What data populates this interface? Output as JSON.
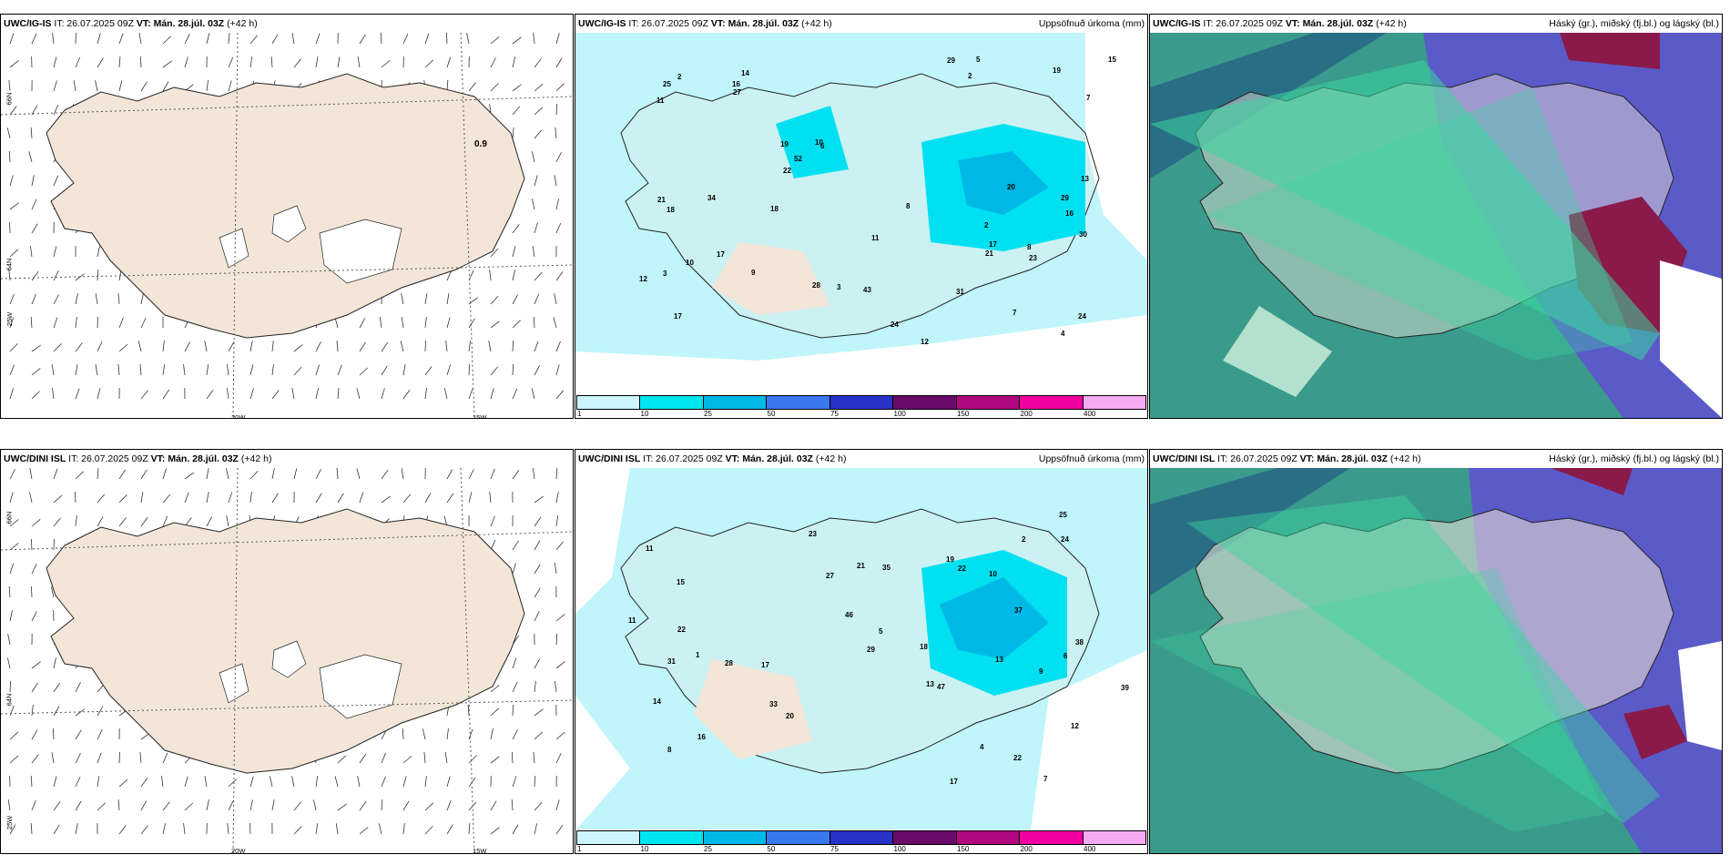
{
  "panels": [
    {
      "model": "UWC/IG-IS",
      "it": "IT: 26.07.2025 09Z",
      "vt": "VT: Mán. 28.júl. 03Z",
      "lead": "(+42 h)",
      "title": ""
    },
    {
      "model": "UWC/IG-IS",
      "it": "IT: 26.07.2025 09Z",
      "vt": "VT: Mán. 28.júl. 03Z",
      "lead": "(+42 h)",
      "title": "Uppsöfnuð úrkoma (mm)"
    },
    {
      "model": "UWC/IG-IS",
      "it": "IT: 26.07.2025 09Z",
      "vt": "VT: Mán. 28.júl. 03Z",
      "lead": "(+42 h)",
      "title": "Háský (gr.), miðský (fj.bl.) og lágský (bl.)"
    },
    {
      "model": "UWC/DINI ISL",
      "it": "IT: 26.07.2025 09Z",
      "vt": "VT: Mán. 28.júl. 03Z",
      "lead": "(+42 h)",
      "title": ""
    },
    {
      "model": "UWC/DINI ISL",
      "it": "IT: 26.07.2025 09Z",
      "vt": "VT: Mán. 28.júl. 03Z",
      "lead": "(+42 h)",
      "title": "Uppsöfnuð úrkoma (mm)"
    },
    {
      "model": "UWC/DINI ISL",
      "it": "IT: 26.07.2025 09Z",
      "vt": "VT: Mán. 28.júl. 03Z",
      "lead": "(+42 h)",
      "title": "Háský (gr.), miðský (fj.bl.) og lágský (bl.)"
    }
  ],
  "coords": {
    "lat_n": "66N",
    "lat_s": "64N",
    "lon_a": "20W",
    "lon_b": "15W",
    "lon_w": "25W"
  },
  "wind_label": "0.9",
  "legend": {
    "ticks": [
      "1",
      "10",
      "25",
      "50",
      "75",
      "100",
      "150",
      "200",
      "400"
    ],
    "colors": [
      "#ccf5ff",
      "#00e6f0",
      "#00b8e6",
      "#3a78f0",
      "#2632c8",
      "#6a0a6a",
      "#b0087e",
      "#f000a0",
      "#f4aaf0"
    ]
  },
  "precip_top": [
    "2",
    "16",
    "17",
    "14",
    "6",
    "7",
    "3",
    "2",
    "19",
    "12",
    "11",
    "21",
    "25",
    "24",
    "28",
    "13",
    "11",
    "8",
    "10",
    "17",
    "15",
    "19",
    "22",
    "30",
    "29",
    "16",
    "17",
    "18",
    "27",
    "20",
    "24",
    "31",
    "52",
    "18",
    "29",
    "23",
    "21",
    "34",
    "43",
    "10",
    "7",
    "5",
    "4",
    "3",
    "8",
    "9",
    "12",
    "2"
  ],
  "precip_bottom": [
    "7",
    "1",
    "13",
    "11",
    "12",
    "15",
    "16",
    "17",
    "10",
    "21",
    "22",
    "22",
    "20",
    "23",
    "18",
    "14",
    "13",
    "5",
    "11",
    "8",
    "25",
    "35",
    "37",
    "39",
    "38",
    "22",
    "28",
    "29",
    "46",
    "24",
    "47",
    "31",
    "33",
    "19",
    "27",
    "9",
    "6",
    "4",
    "2",
    "17"
  ],
  "colors": {
    "land": "#f3e6d8",
    "precip_light": "#bff5fb",
    "precip_mid": "#00e0f0",
    "precip_dark": "#00b8e6",
    "cloud_low": "#3a9a8c",
    "cloud_mid": "#5a5ac8",
    "cloud_high": "#8a1a4a",
    "cloud_green": "#3cd6a0"
  }
}
